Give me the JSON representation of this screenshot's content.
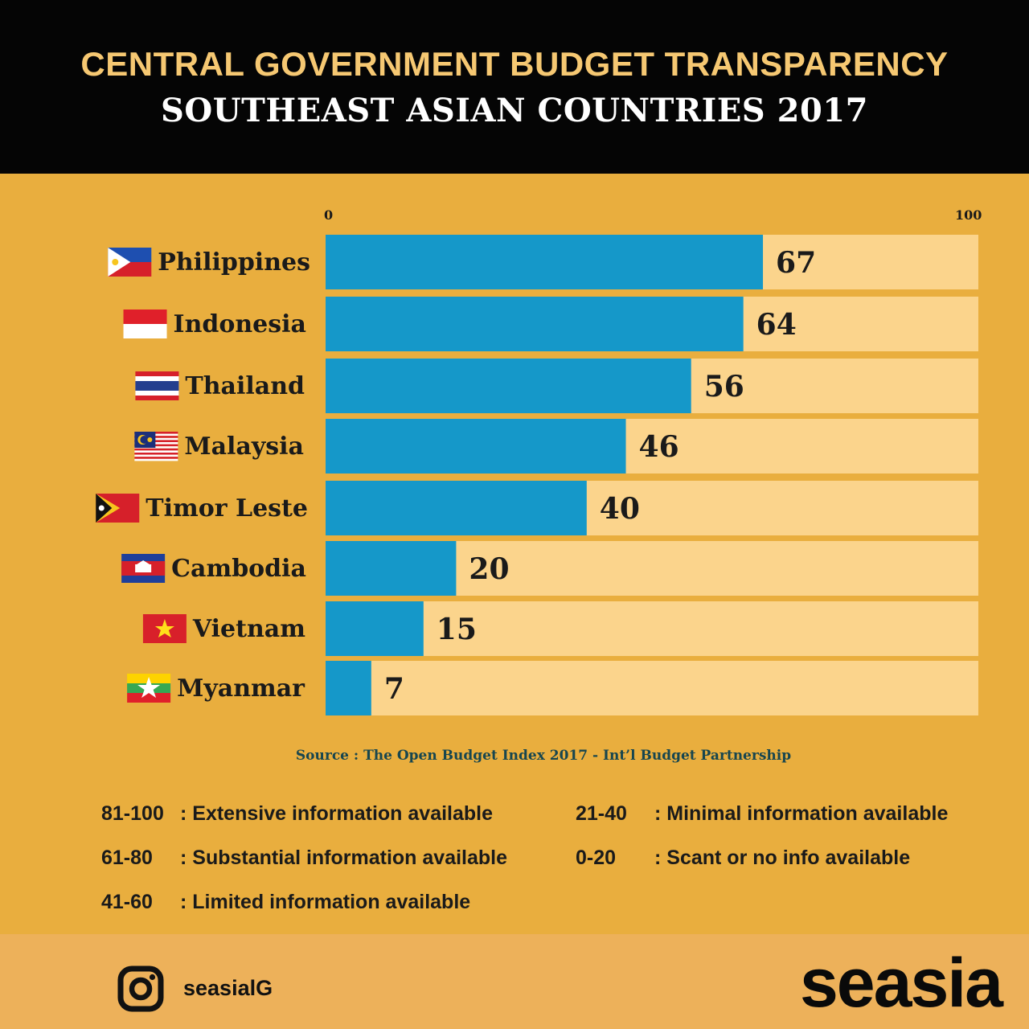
{
  "header": {
    "title": "CENTRAL GOVERNMENT BUDGET TRANSPARENCY",
    "subtitle": "SOUTHEAST ASIAN COUNTRIES 2017"
  },
  "colors": {
    "bar_fill": "#1598C9",
    "bar_track": "#FBD48C",
    "background": "#E9AE3E",
    "header_bg": "#050505",
    "title_color": "#F6C872",
    "source_color": "#17464F"
  },
  "chart_data": {
    "type": "bar",
    "orientation": "horizontal",
    "title": "CENTRAL GOVERNMENT BUDGET TRANSPARENCY",
    "subtitle": "SOUTHEAST ASIAN COUNTRIES 2017",
    "categories": [
      "Philippines",
      "Indonesia",
      "Thailand",
      "Malaysia",
      "Timor Leste",
      "Cambodia",
      "Vietnam",
      "Myanmar"
    ],
    "values": [
      67,
      64,
      56,
      46,
      40,
      20,
      15,
      7
    ],
    "value_labels": [
      "67",
      "64",
      "56",
      "46",
      "40",
      "20",
      "15",
      "7"
    ],
    "xlim": [
      0,
      100
    ],
    "axis_tick_labels": [
      "0",
      "100"
    ],
    "flags": [
      "philippines-flag-icon",
      "indonesia-flag-icon",
      "thailand-flag-icon",
      "malaysia-flag-icon",
      "timor-leste-flag-icon",
      "cambodia-flag-icon",
      "vietnam-flag-icon",
      "myanmar-flag-icon"
    ],
    "grid": false,
    "legend": "none"
  },
  "source": "Source : The Open Budget Index 2017 - Int’l Budget Partnership",
  "legend": [
    {
      "range": "81-100",
      "desc": ": Extensive information available"
    },
    {
      "range": "61-80",
      "desc": ": Substantial information available"
    },
    {
      "range": "41-60",
      "desc": ": Limited information available"
    },
    {
      "range": "21-40",
      "desc": ": Minimal information available"
    },
    {
      "range": "0-20",
      "desc": ": Scant or no info available"
    }
  ],
  "footer": {
    "icon": "instagram-icon",
    "handle": "seasialG",
    "brand": "seasia"
  }
}
